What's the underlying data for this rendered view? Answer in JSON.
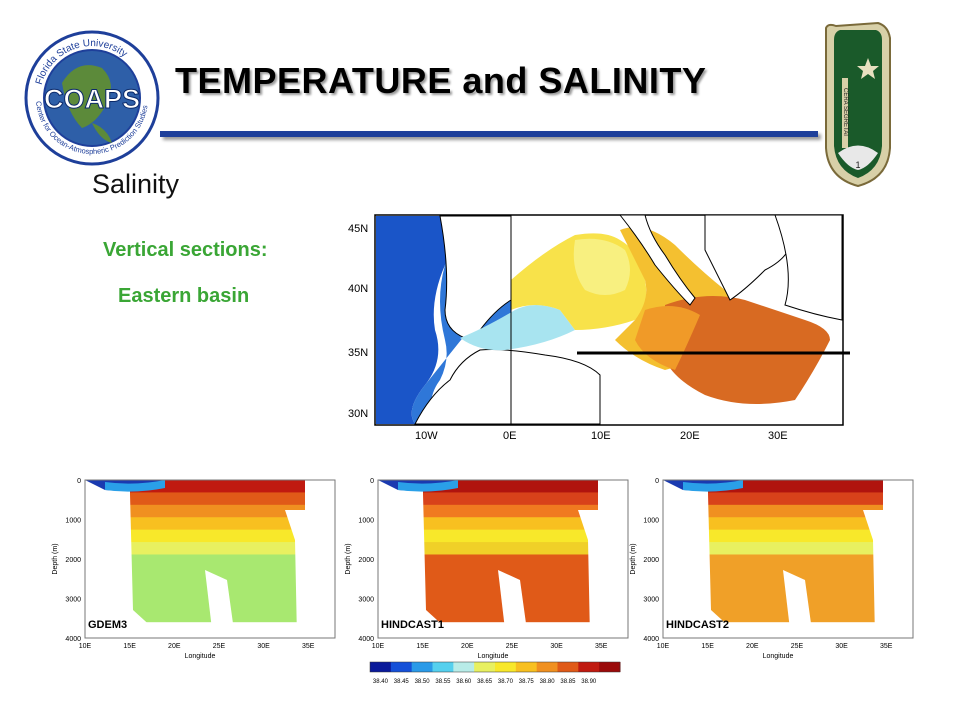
{
  "header": {
    "title": "TEMPERATURE and SALINITY",
    "logo_text": "COAPS",
    "logo_ring_top": "Florida State University",
    "logo_ring_bottom": "Center for Ocean-Atmospheric Prediction Studies",
    "insignia_text": "CERA SEGRETAI"
  },
  "slide": {
    "subtitle": "Salinity",
    "label_vertical": "Vertical sections:",
    "label_basin": "Eastern basin"
  },
  "map": {
    "lat_labels": [
      "45N",
      "40N",
      "35N",
      "30N"
    ],
    "lon_labels": [
      "10W",
      "0E",
      "10E",
      "20E",
      "30E"
    ]
  },
  "panels": [
    {
      "name": "GDEM3"
    },
    {
      "name": "HINDCAST1"
    },
    {
      "name": "HINDCAST2"
    }
  ],
  "axes": {
    "ylabel": "Depth (m)",
    "xlabel": "Longitude",
    "depth_ticks": [
      "0",
      "1000",
      "2000",
      "3000",
      "4000"
    ],
    "lon_ticks": [
      "10E",
      "15E",
      "20E",
      "25E",
      "30E",
      "35E"
    ]
  },
  "colorbar": {
    "ticks": [
      "38.40",
      "38.45",
      "38.50",
      "38.55",
      "38.60",
      "38.65",
      "38.70",
      "38.75",
      "38.80",
      "38.85",
      "38.90"
    ],
    "colors": [
      "#0a1a9a",
      "#1550d8",
      "#2a9ae8",
      "#55d0ee",
      "#b8ece8",
      "#e8f060",
      "#f8e82a",
      "#f8c020",
      "#f09020",
      "#e05a18",
      "#c01a10",
      "#9a0a0a"
    ]
  },
  "colors": {
    "title_rule": "#1e3f9a",
    "label_green": "#3aa635"
  }
}
